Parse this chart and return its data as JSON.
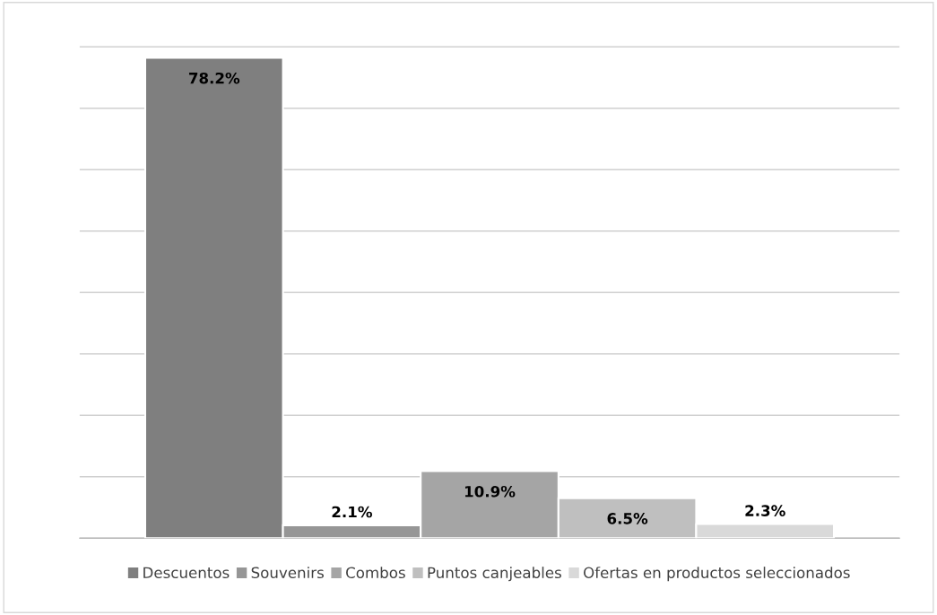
{
  "chart_data": {
    "type": "bar",
    "categories": [
      null
    ],
    "series": [
      {
        "name": "Descuentos",
        "color": "#7f7f7f",
        "values": [
          78.2
        ],
        "value_labels": [
          "78.2%"
        ]
      },
      {
        "name": "Souvenirs",
        "color": "#969696",
        "values": [
          2.1
        ],
        "value_labels": [
          "2.1%"
        ]
      },
      {
        "name": "Combos",
        "color": "#a5a5a5",
        "values": [
          10.9
        ],
        "value_labels": [
          "10.9%"
        ]
      },
      {
        "name": "Puntos canjeables",
        "color": "#bfbfbf",
        "values": [
          6.5
        ],
        "value_labels": [
          "6.5%"
        ]
      },
      {
        "name": "Ofertas en productos seleccionados",
        "color": "#d9d9d9",
        "values": [
          2.3
        ],
        "value_labels": [
          "2.3%"
        ]
      }
    ],
    "grid": "y",
    "legend": "bottom"
  }
}
